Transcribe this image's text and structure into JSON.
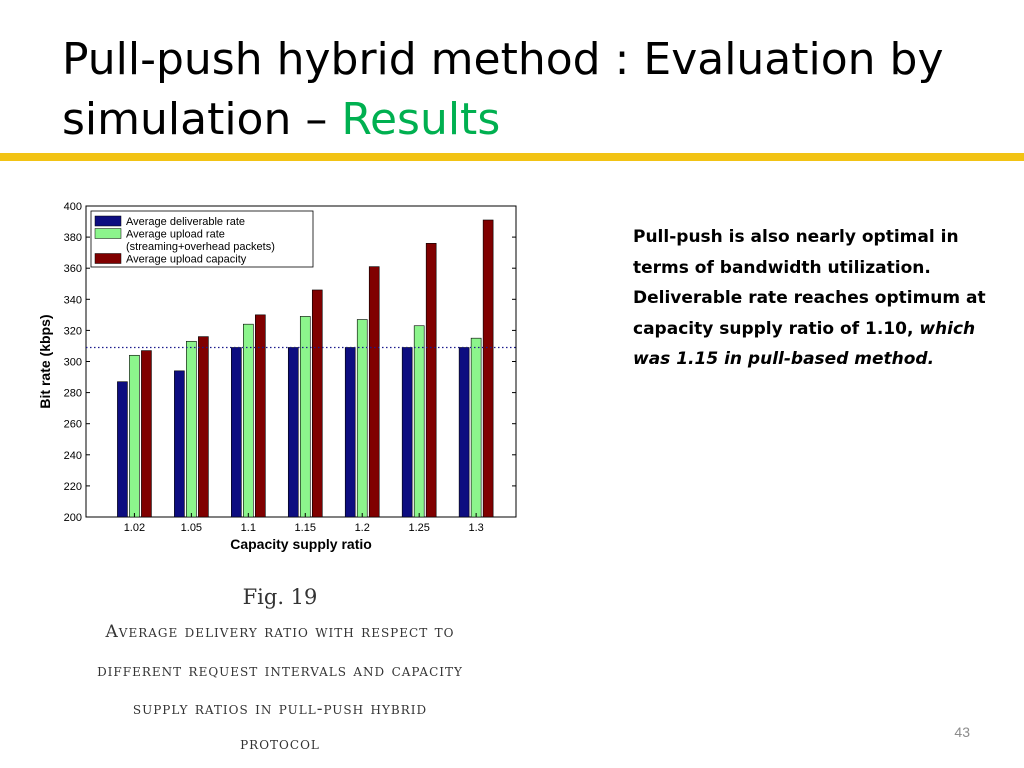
{
  "slide": {
    "title_main": "Pull-push hybrid method : Evaluation by simulation –",
    "title_accent": "Results",
    "accent_color": "#00b050",
    "rule_color": "#f2c314",
    "page_number": "43"
  },
  "figure": {
    "label": "Fig. 19",
    "caption_lines": [
      "Average delivery ratio with respect to",
      "different request intervals and capacity",
      "supply ratios in pull-push hybrid",
      "protocol"
    ]
  },
  "side_text": {
    "bold_part": "Pull-push is also nearly optimal in terms of bandwidth utilization. Deliverable rate reaches optimum at capacity supply ratio of 1.10,",
    "italic_part": "which was 1.15 in pull-based method."
  },
  "chart_data": {
    "type": "bar",
    "title": "",
    "xlabel": "Capacity supply ratio",
    "ylabel": "Bit rate (kbps)",
    "categories": [
      "1.02",
      "1.05",
      "1.1",
      "1.15",
      "1.2",
      "1.25",
      "1.3"
    ],
    "ylim": [
      200,
      400
    ],
    "yticks": [
      200,
      220,
      240,
      260,
      280,
      300,
      320,
      340,
      360,
      380,
      400
    ],
    "grid": false,
    "legend_position": "top-left",
    "reference_line": {
      "value": 309,
      "style": "dotted",
      "color": "#1a1a8c"
    },
    "series": [
      {
        "name": "Average deliverable rate",
        "color": "#0d0d80",
        "values": [
          287,
          294,
          309,
          309,
          309,
          309,
          309
        ]
      },
      {
        "name": "Average upload rate (streaming+overhead packets)",
        "color": "#8cf58c",
        "values": [
          304,
          313,
          324,
          329,
          327,
          323,
          315
        ]
      },
      {
        "name": "Average upload capacity",
        "color": "#800000",
        "values": [
          307,
          316,
          330,
          346,
          361,
          376,
          391
        ]
      }
    ],
    "legend_lines": [
      [
        "Average deliverable rate"
      ],
      [
        "Average upload rate",
        "(streaming+overhead packets)"
      ],
      [
        "Average upload capacity"
      ]
    ]
  }
}
